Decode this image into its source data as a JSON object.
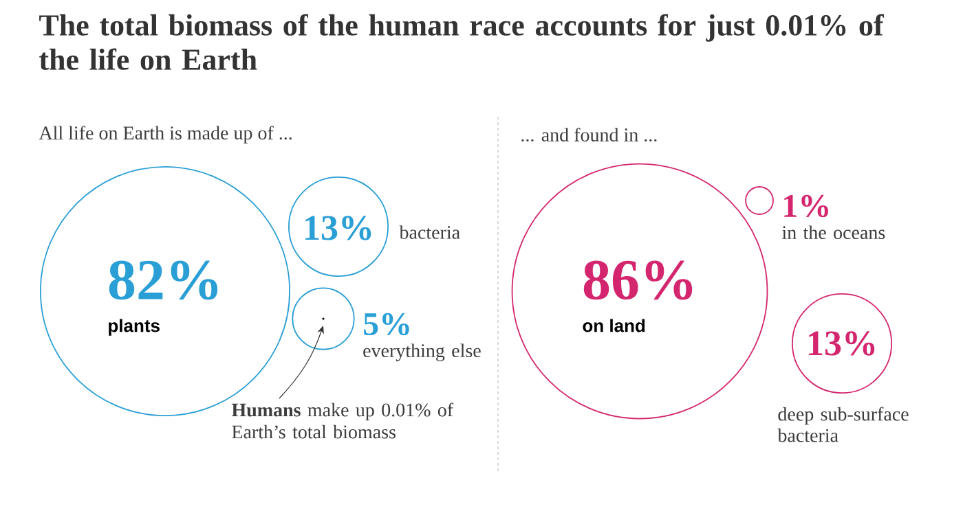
{
  "chart_data": [
    {
      "type": "other",
      "title": "The total biomass of the human race accounts for just 0.01% of the life on Earth",
      "subtitle": "All life on Earth is made up of ...",
      "categories": [
        "plants",
        "bacteria",
        "everything else"
      ],
      "values": [
        82,
        13,
        5
      ],
      "value_labels": [
        "82%",
        "13%",
        "5%"
      ],
      "color": "#2a9fd6",
      "annotations": [
        "**Humans** make up 0.01% of Earth’s total biomass"
      ]
    },
    {
      "type": "other",
      "subtitle": "... and found in ...",
      "categories": [
        "on land",
        "in the oceans",
        "deep sub-surface bacteria"
      ],
      "values": [
        86,
        1,
        13
      ],
      "value_labels": [
        "86%",
        "1%",
        "13%"
      ],
      "color": "#d4266e"
    }
  ]
}
